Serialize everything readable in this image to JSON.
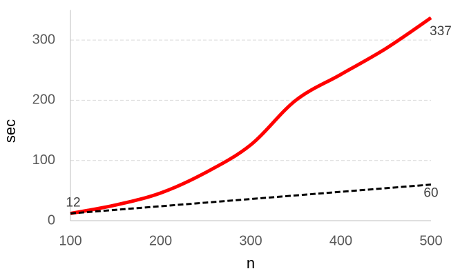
{
  "chart_data": {
    "type": "line",
    "x_label": "n",
    "y_label": "sec",
    "x": [
      100,
      150,
      200,
      250,
      300,
      350,
      400,
      450,
      500
    ],
    "series": [
      {
        "color": "#ff0000",
        "line_style": "solid",
        "values": [
          12,
          26,
          46,
          80,
          126,
          200,
          243,
          286,
          337
        ]
      },
      {
        "color": "#000000",
        "line_style": "dashed",
        "values": [
          12,
          18,
          24,
          30,
          36,
          42,
          48,
          54,
          60
        ]
      }
    ],
    "xlim": [
      100,
      500
    ],
    "xticks": [
      100,
      200,
      300,
      400,
      500
    ],
    "ylim": [
      0,
      350
    ],
    "yticks": [
      0,
      100,
      200,
      300
    ],
    "grid": true
  }
}
